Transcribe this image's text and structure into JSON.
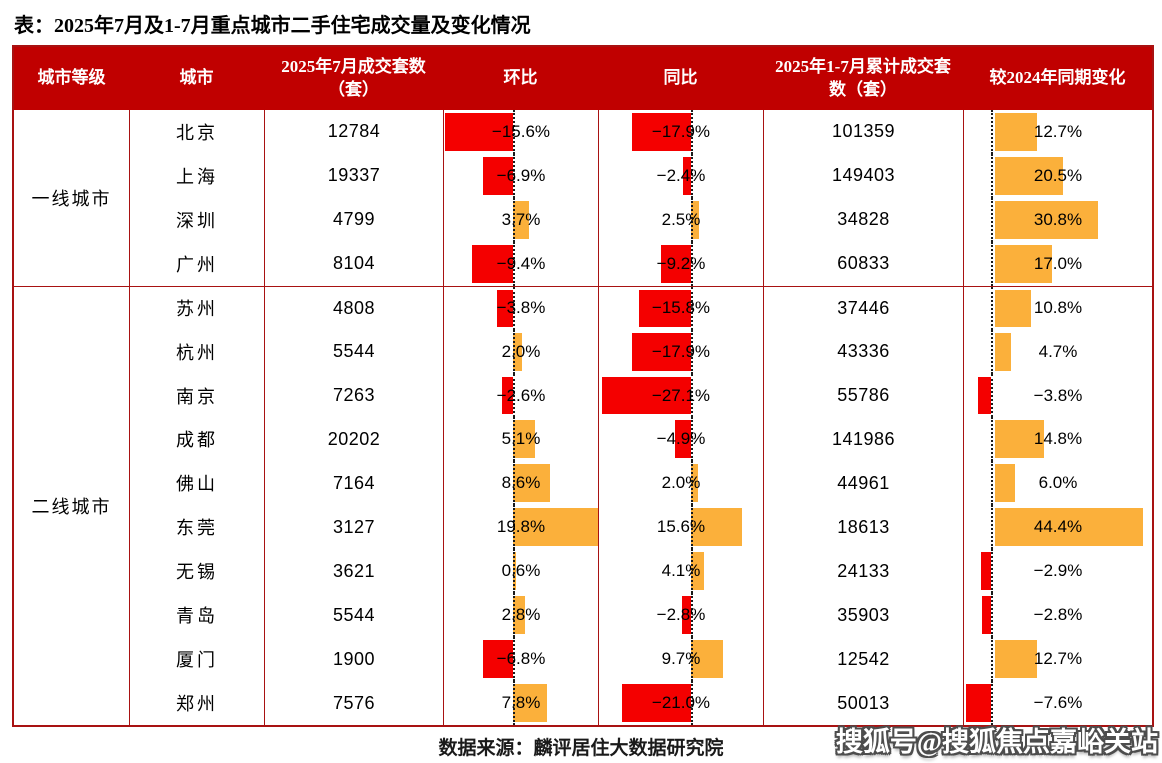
{
  "title": "表：2025年7月及1-7月重点城市二手住宅成交量及变化情况",
  "colors": {
    "header_bg": "#C00000",
    "border": "#A81212",
    "negative": "#F40000",
    "positive": "#FBB03B",
    "baseline": "#1a1a1a"
  },
  "table": {
    "headers": [
      "城市等级",
      "城市",
      "2025年7月成交套数（套）",
      "环比",
      "同比",
      "2025年1-7月累计成交套数（套）",
      "较2024年同期变化"
    ],
    "tiers": [
      {
        "label": "一线城市",
        "rows": 4
      },
      {
        "label": "二线城市",
        "rows": 10
      }
    ]
  },
  "chart_data": {
    "type": "table",
    "title": "2025年7月及1-7月重点城市二手住宅成交量及变化情况",
    "columns": [
      "城市等级",
      "城市",
      "2025年7月成交套数（套）",
      "环比",
      "同比",
      "2025年1-7月累计成交套数（套）",
      "较2024年同期变化"
    ],
    "bar_columns": [
      "环比",
      "同比",
      "较2024年同期变化"
    ],
    "bar_style": {
      "negative_color": "#F40000",
      "positive_color": "#FBB03B",
      "zero_baseline": "vertical dotted line, negative bars extend left, positive bars extend right"
    },
    "rows": [
      {
        "tier": "一线城市",
        "city": "北京",
        "jul": "12784",
        "mom": -15.6,
        "mom_label": "−15.6%",
        "yoy": -17.9,
        "yoy_label": "−17.9%",
        "cum": "101359",
        "chg": 12.7,
        "chg_label": "12.7%"
      },
      {
        "tier": "一线城市",
        "city": "上海",
        "jul": "19337",
        "mom": -6.9,
        "mom_label": "−6.9%",
        "yoy": -2.4,
        "yoy_label": "−2.4%",
        "cum": "149403",
        "chg": 20.5,
        "chg_label": "20.5%"
      },
      {
        "tier": "一线城市",
        "city": "深圳",
        "jul": "4799",
        "mom": 3.7,
        "mom_label": "3.7%",
        "yoy": 2.5,
        "yoy_label": "2.5%",
        "cum": "34828",
        "chg": 30.8,
        "chg_label": "30.8%"
      },
      {
        "tier": "一线城市",
        "city": "广州",
        "jul": "8104",
        "mom": -9.4,
        "mom_label": "−9.4%",
        "yoy": -9.2,
        "yoy_label": "−9.2%",
        "cum": "60833",
        "chg": 17.0,
        "chg_label": "17.0%"
      },
      {
        "tier": "二线城市",
        "city": "苏州",
        "jul": "4808",
        "mom": -3.8,
        "mom_label": "−3.8%",
        "yoy": -15.8,
        "yoy_label": "−15.8%",
        "cum": "37446",
        "chg": 10.8,
        "chg_label": "10.8%"
      },
      {
        "tier": "二线城市",
        "city": "杭州",
        "jul": "5544",
        "mom": 2.0,
        "mom_label": "2.0%",
        "yoy": -17.9,
        "yoy_label": "−17.9%",
        "cum": "43336",
        "chg": 4.7,
        "chg_label": "4.7%"
      },
      {
        "tier": "二线城市",
        "city": "南京",
        "jul": "7263",
        "mom": -2.6,
        "mom_label": "−2.6%",
        "yoy": -27.1,
        "yoy_label": "−27.1%",
        "cum": "55786",
        "chg": -3.8,
        "chg_label": "−3.8%"
      },
      {
        "tier": "二线城市",
        "city": "成都",
        "jul": "20202",
        "mom": 5.1,
        "mom_label": "5.1%",
        "yoy": -4.9,
        "yoy_label": "−4.9%",
        "cum": "141986",
        "chg": 14.8,
        "chg_label": "14.8%"
      },
      {
        "tier": "二线城市",
        "city": "佛山",
        "jul": "7164",
        "mom": 8.6,
        "mom_label": "8.6%",
        "yoy": 2.0,
        "yoy_label": "2.0%",
        "cum": "44961",
        "chg": 6.0,
        "chg_label": "6.0%"
      },
      {
        "tier": "二线城市",
        "city": "东莞",
        "jul": "3127",
        "mom": 19.8,
        "mom_label": "19.8%",
        "yoy": 15.6,
        "yoy_label": "15.6%",
        "cum": "18613",
        "chg": 44.4,
        "chg_label": "44.4%"
      },
      {
        "tier": "二线城市",
        "city": "无锡",
        "jul": "3621",
        "mom": 0.6,
        "mom_label": "0.6%",
        "yoy": 4.1,
        "yoy_label": "4.1%",
        "cum": "24133",
        "chg": -2.9,
        "chg_label": "−2.9%"
      },
      {
        "tier": "二线城市",
        "city": "青岛",
        "jul": "5544",
        "mom": 2.8,
        "mom_label": "2.8%",
        "yoy": -2.8,
        "yoy_label": "−2.8%",
        "cum": "35903",
        "chg": -2.8,
        "chg_label": "−2.8%"
      },
      {
        "tier": "二线城市",
        "city": "厦门",
        "jul": "1900",
        "mom": -6.8,
        "mom_label": "−6.8%",
        "yoy": 9.7,
        "yoy_label": "9.7%",
        "cum": "12542",
        "chg": 12.7,
        "chg_label": "12.7%"
      },
      {
        "tier": "二线城市",
        "city": "郑州",
        "jul": "7576",
        "mom": 7.8,
        "mom_label": "7.8%",
        "yoy": -21.0,
        "yoy_label": "−21.0%",
        "cum": "50013",
        "chg": -7.6,
        "chg_label": "−7.6%"
      }
    ]
  },
  "footer": {
    "source": "数据来源：麟评居住大数据研究院"
  },
  "watermark": "搜狐号@搜狐焦点嘉峪关站"
}
